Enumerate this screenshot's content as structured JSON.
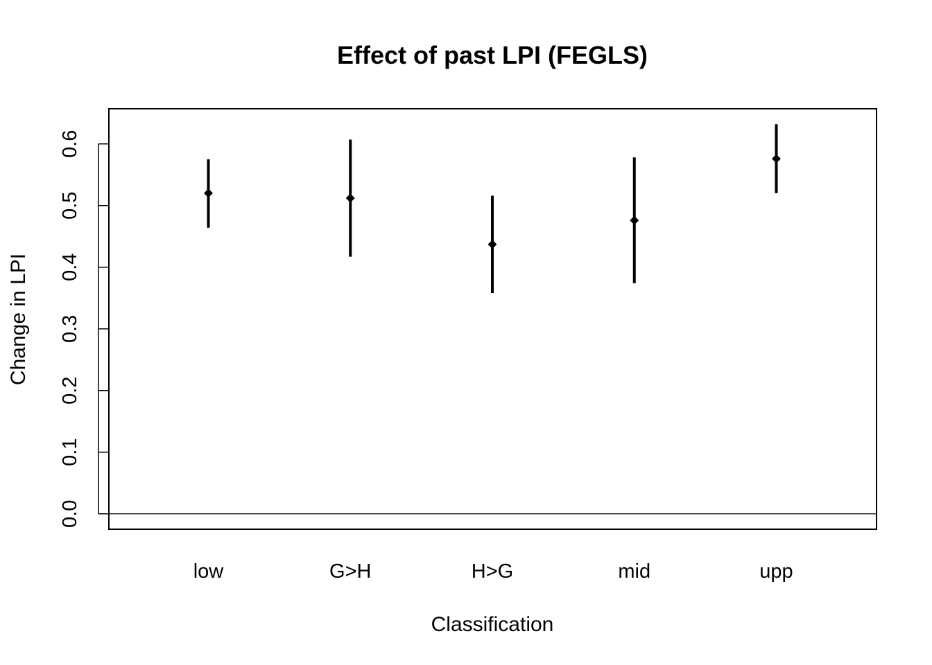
{
  "chart_data": {
    "type": "errorbar",
    "title": "Effect of past LPI (FEGLS)",
    "xlabel": "Classification",
    "ylabel": "Change in LPI",
    "categories": [
      "low",
      "G>H",
      "H>G",
      "mid",
      "upp"
    ],
    "values": [
      0.52,
      0.512,
      0.437,
      0.476,
      0.576
    ],
    "lower": [
      0.464,
      0.417,
      0.358,
      0.374,
      0.52
    ],
    "upper": [
      0.575,
      0.607,
      0.516,
      0.578,
      0.632
    ],
    "yticks": [
      "0.0",
      "0.1",
      "0.2",
      "0.3",
      "0.4",
      "0.5",
      "0.6"
    ],
    "ylim": [
      -0.025,
      0.657
    ],
    "reference_line": 0.0,
    "grid": false,
    "colors": {
      "marks": "#000000"
    }
  }
}
